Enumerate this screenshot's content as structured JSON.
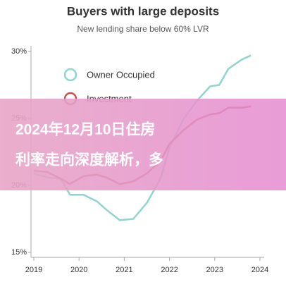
{
  "chart_data": {
    "type": "line",
    "title": "Buyers with large deposits",
    "subtitle": "New lending share below 60% LVR",
    "x": [
      2019,
      2019.3,
      2019.6,
      2019.8,
      2020.1,
      2020.4,
      2020.6,
      2020.9,
      2021.2,
      2021.5,
      2021.8,
      2022,
      2022.3,
      2022.6,
      2022.9,
      2023.1,
      2023.3,
      2023.6,
      2023.8
    ],
    "series": [
      {
        "name": "Owner Occupied",
        "color": "#8fd4d0",
        "values": [
          20.9,
          20.6,
          20.5,
          19.3,
          19.3,
          18.8,
          18.2,
          17.4,
          17.5,
          18.7,
          20.5,
          22.8,
          24.9,
          26.3,
          27.4,
          27.5,
          28.7,
          29.4,
          29.7
        ]
      },
      {
        "name": "Investment",
        "color": "#c8534a",
        "values": [
          21.1,
          21.0,
          20.5,
          20.1,
          20.7,
          20.8,
          20.6,
          20.1,
          20.3,
          20.9,
          21.8,
          23.1,
          24.1,
          24.9,
          25.3,
          25.4,
          25.8,
          25.8,
          25.9
        ]
      }
    ],
    "xlim": [
      2019,
      2024
    ],
    "xticks": [
      2019,
      2020,
      2021,
      2022,
      2023,
      2024
    ],
    "ylim": [
      15,
      30
    ],
    "yticks": [
      {
        "value": 15,
        "label": "15%"
      },
      {
        "value": 20,
        "label": "20%"
      },
      {
        "value": 25,
        "label": "25%"
      },
      {
        "value": 30,
        "label": "30%"
      }
    ]
  },
  "banner": {
    "lines": [
      "2024年12月10日住房",
      "利率走向深度解析，多"
    ]
  }
}
